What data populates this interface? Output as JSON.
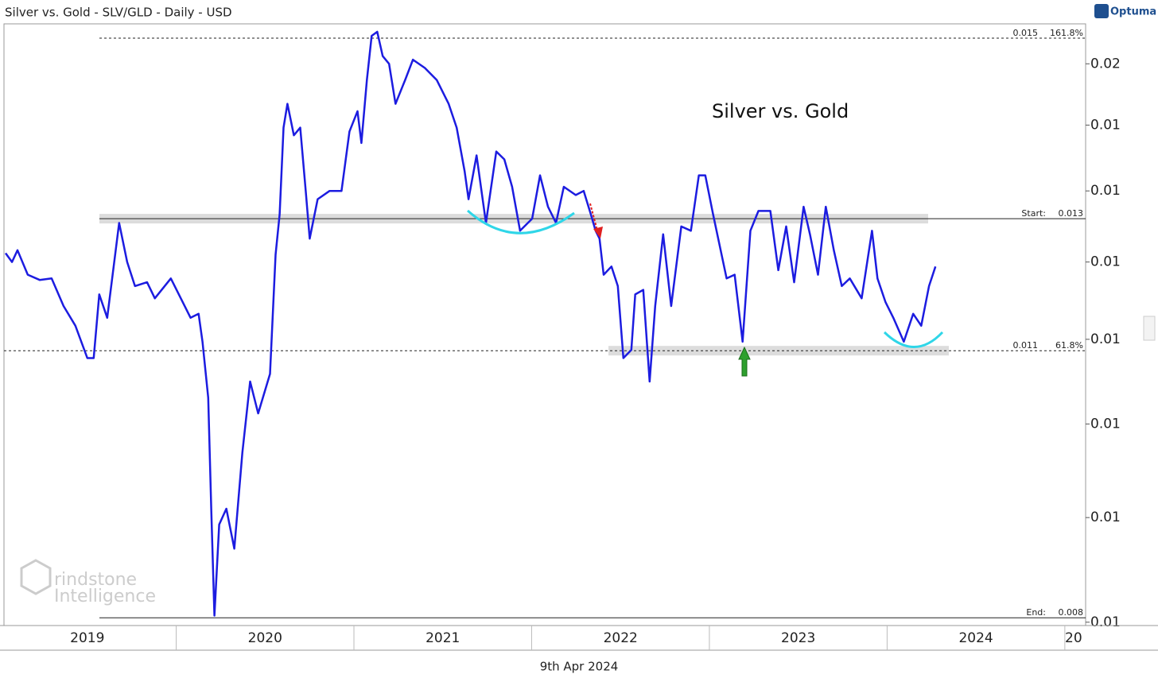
{
  "chart_data": {
    "type": "line",
    "title": "Silver vs. Gold - SLV/GLD - Daily - USD",
    "brand": "Optuma",
    "date_label": "9th Apr 2024",
    "watermark": [
      "rindstone",
      "Intelligence"
    ],
    "log_scale": true,
    "xlim": [
      2019.031,
      2025.117
    ],
    "xticks": [
      2019,
      2020,
      2021,
      2022,
      2023,
      2024,
      {
        "value": 2025,
        "label": "20"
      }
    ],
    "ylim": [
      0.00797,
      0.01569
    ],
    "yticks": [
      {
        "value": 0.015,
        "label": "0.02"
      },
      {
        "value": 0.014,
        "label": "0.01"
      },
      {
        "value": 0.013,
        "label": "0.01"
      },
      {
        "value": 0.012,
        "label": "0.01"
      },
      {
        "value": 0.011,
        "label": "0.01"
      },
      {
        "value": 0.01,
        "label": "0.01"
      },
      {
        "value": 0.009,
        "label": "0.01"
      },
      {
        "value": 0.008,
        "label": "0.01"
      }
    ],
    "levels": [
      {
        "value": 0.01544,
        "price_label": "0.015",
        "label": "161.8%",
        "style": "dashed"
      },
      {
        "value": 0.0126,
        "label": "Start:",
        "price_label": "0.013",
        "style": "solid"
      },
      {
        "value": 0.01086,
        "price_label": "0.011",
        "label": "61.8%",
        "style": "dashed"
      },
      {
        "value": 0.00804,
        "label": "End:",
        "price_label": "0.008",
        "style": "solid"
      }
    ],
    "x": [
      2019.04,
      2019.076,
      2019.107,
      2019.165,
      2019.232,
      2019.299,
      2019.366,
      2019.433,
      2019.5,
      2019.536,
      2019.567,
      2019.612,
      2019.679,
      2019.724,
      2019.768,
      2019.836,
      2019.88,
      2019.97,
      2020.081,
      2020.126,
      2020.148,
      2020.18,
      2020.197,
      2020.215,
      2020.242,
      2020.282,
      2020.327,
      2020.372,
      2020.416,
      2020.461,
      2020.528,
      2020.559,
      2020.582,
      2020.604,
      2020.626,
      2020.662,
      2020.698,
      2020.729,
      2020.751,
      2020.796,
      2020.863,
      2020.93,
      2020.975,
      2021.02,
      2021.042,
      2021.073,
      2021.1,
      2021.131,
      2021.162,
      2021.198,
      2021.234,
      2021.288,
      2021.332,
      2021.399,
      2021.466,
      2021.533,
      2021.578,
      2021.623,
      2021.645,
      2021.69,
      2021.743,
      2021.801,
      2021.846,
      2021.89,
      2021.935,
      2022.003,
      2022.047,
      2022.092,
      2022.137,
      2022.181,
      2022.248,
      2022.293,
      2022.333,
      2022.36,
      2022.382,
      2022.405,
      2022.449,
      2022.485,
      2022.516,
      2022.561,
      2022.583,
      2022.628,
      2022.664,
      2022.695,
      2022.74,
      2022.785,
      2022.842,
      2022.896,
      2022.941,
      2022.977,
      2023.021,
      2023.097,
      2023.142,
      2023.187,
      2023.231,
      2023.276,
      2023.343,
      2023.388,
      2023.432,
      2023.477,
      2023.53,
      2023.566,
      2023.611,
      2023.655,
      2023.7,
      2023.745,
      2023.79,
      2023.857,
      2023.915,
      2023.946,
      2023.991,
      2024.035,
      2024.094,
      2024.147,
      2024.192,
      2024.236,
      2024.272
    ],
    "series": [
      {
        "name": "Silver vs. Gold",
        "color": "#1c1ce0",
        "values": [
          0.01212,
          0.012,
          0.01216,
          0.01183,
          0.01176,
          0.01178,
          0.01142,
          0.01117,
          0.01077,
          0.01077,
          0.01157,
          0.01127,
          0.01254,
          0.012,
          0.01168,
          0.01173,
          0.01152,
          0.01178,
          0.01127,
          0.01132,
          0.01097,
          0.0103,
          0.00909,
          0.00806,
          0.00893,
          0.00909,
          0.00869,
          0.00968,
          0.01049,
          0.01012,
          0.01058,
          0.0121,
          0.01266,
          0.01396,
          0.01434,
          0.01384,
          0.01396,
          0.013,
          0.01232,
          0.01288,
          0.013,
          0.013,
          0.0139,
          0.01422,
          0.01372,
          0.01473,
          0.01548,
          0.01555,
          0.01513,
          0.015,
          0.01434,
          0.01473,
          0.01507,
          0.01493,
          0.01473,
          0.01434,
          0.01396,
          0.01329,
          0.01288,
          0.01353,
          0.01254,
          0.01359,
          0.01347,
          0.01306,
          0.01243,
          0.0126,
          0.01323,
          0.01277,
          0.01254,
          0.01306,
          0.01294,
          0.013,
          0.01266,
          0.01243,
          0.01232,
          0.01183,
          0.01194,
          0.01168,
          0.01077,
          0.01087,
          0.01157,
          0.01163,
          0.01049,
          0.01142,
          0.01238,
          0.01142,
          0.01249,
          0.01243,
          0.01323,
          0.01323,
          0.01266,
          0.01178,
          0.01183,
          0.01097,
          0.01243,
          0.01271,
          0.01271,
          0.01189,
          0.01249,
          0.01173,
          0.01277,
          0.01238,
          0.01183,
          0.01277,
          0.01216,
          0.01168,
          0.01178,
          0.01152,
          0.01243,
          0.01178,
          0.01147,
          0.01127,
          0.01097,
          0.01132,
          0.01117,
          0.01168,
          0.01194
        ]
      }
    ]
  }
}
